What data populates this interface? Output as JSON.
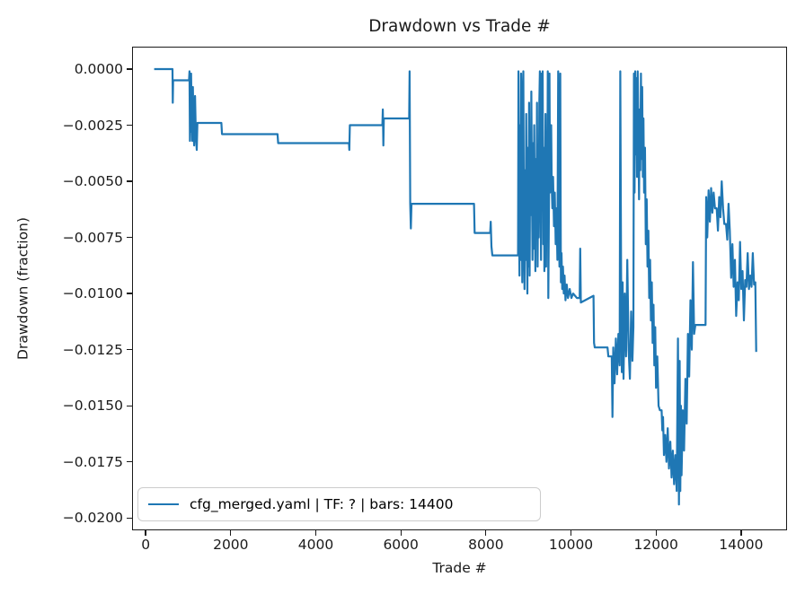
{
  "colors": {
    "line": "#1f77b4",
    "spine": "#1a1a1a",
    "legend_border": "#cccccc",
    "background": "#ffffff"
  },
  "chart_data": {
    "type": "line",
    "title": "Drawdown vs Trade #",
    "xlabel": "Trade #",
    "ylabel": "Drawdown (fraction)",
    "xlim": [
      -320,
      15080
    ],
    "ylim": [
      -0.02055,
      0.001
    ],
    "grid": false,
    "legend_position": "lower left",
    "x_ticks": [
      {
        "v": 0,
        "label": "0"
      },
      {
        "v": 2000,
        "label": "2000"
      },
      {
        "v": 4000,
        "label": "4000"
      },
      {
        "v": 6000,
        "label": "6000"
      },
      {
        "v": 8000,
        "label": "8000"
      },
      {
        "v": 10000,
        "label": "10000"
      },
      {
        "v": 12000,
        "label": "12000"
      },
      {
        "v": 14000,
        "label": "14000"
      }
    ],
    "y_ticks": [
      {
        "v": 0.0,
        "label": "0.0000"
      },
      {
        "v": -0.0025,
        "label": "−0.0025"
      },
      {
        "v": -0.005,
        "label": "−0.0050"
      },
      {
        "v": -0.0075,
        "label": "−0.0075"
      },
      {
        "v": -0.01,
        "label": "−0.0100"
      },
      {
        "v": -0.0125,
        "label": "−0.0125"
      },
      {
        "v": -0.015,
        "label": "−0.0150"
      },
      {
        "v": -0.0175,
        "label": "−0.0175"
      },
      {
        "v": -0.02,
        "label": "−0.0200"
      }
    ],
    "series": [
      {
        "name": "cfg_merged.yaml | TF: ? | bars: 14400",
        "color": "#1f77b4",
        "points": [
          [
            200,
            0
          ],
          [
            630,
            0
          ],
          [
            637,
            -0.0015
          ],
          [
            645,
            -0.0005
          ],
          [
            1020,
            -0.0005
          ],
          [
            1030,
            -0.0001
          ],
          [
            1040,
            -0.0032
          ],
          [
            1048,
            -0.0004
          ],
          [
            1058,
            -0.0028
          ],
          [
            1068,
            -0.0002
          ],
          [
            1080,
            -0.002
          ],
          [
            1095,
            -0.0032
          ],
          [
            1110,
            -0.0008
          ],
          [
            1125,
            -0.0028
          ],
          [
            1140,
            -0.0034
          ],
          [
            1160,
            -0.0012
          ],
          [
            1180,
            -0.003
          ],
          [
            1200,
            -0.0036
          ],
          [
            1215,
            -0.0024
          ],
          [
            1780,
            -0.0024
          ],
          [
            1795,
            -0.0029
          ],
          [
            3100,
            -0.0029
          ],
          [
            3115,
            -0.0033
          ],
          [
            4780,
            -0.0033
          ],
          [
            4788,
            -0.0036
          ],
          [
            4800,
            -0.0025
          ],
          [
            5565,
            -0.0025
          ],
          [
            5575,
            -0.0018
          ],
          [
            5588,
            -0.0034
          ],
          [
            5600,
            -0.0022
          ],
          [
            6195,
            -0.0022
          ],
          [
            6205,
            -0.0001
          ],
          [
            6220,
            -0.006
          ],
          [
            6235,
            -0.0071
          ],
          [
            6250,
            -0.006
          ],
          [
            7720,
            -0.006
          ],
          [
            7735,
            -0.0073
          ],
          [
            8100,
            -0.0073
          ],
          [
            8112,
            -0.0068
          ],
          [
            8130,
            -0.0079
          ],
          [
            8150,
            -0.0083
          ],
          [
            8755,
            -0.0083
          ],
          [
            8765,
            -0.0001
          ],
          [
            8778,
            -0.006
          ],
          [
            8790,
            -0.0092
          ],
          [
            8802,
            -0.0025
          ],
          [
            8815,
            -0.0085
          ],
          [
            8828,
            -0.0002
          ],
          [
            8842,
            -0.0055
          ],
          [
            8855,
            -0.0095
          ],
          [
            8868,
            -0.0012
          ],
          [
            8880,
            -0.0001
          ],
          [
            8895,
            -0.0078
          ],
          [
            8908,
            -0.0098
          ],
          [
            8922,
            -0.0045
          ],
          [
            8935,
            -0.0085
          ],
          [
            8948,
            -0.002
          ],
          [
            8962,
            -0.0075
          ],
          [
            8975,
            -0.01
          ],
          [
            8988,
            -0.0035
          ],
          [
            9002,
            -0.0088
          ],
          [
            9015,
            -0.0015
          ],
          [
            9028,
            -0.0092
          ],
          [
            9042,
            -0.003
          ],
          [
            9055,
            -0.0065
          ],
          [
            9068,
            -0.001
          ],
          [
            9082,
            -0.0055
          ],
          [
            9095,
            -0.0085
          ],
          [
            9108,
            -0.0033
          ],
          [
            9122,
            -0.008
          ],
          [
            9135,
            -0.0025
          ],
          [
            9148,
            -0.006
          ],
          [
            9162,
            -0.009
          ],
          [
            9175,
            -0.004
          ],
          [
            9188,
            -0.0075
          ],
          [
            9202,
            -0.0015
          ],
          [
            9215,
            -0.0088
          ],
          [
            9228,
            -0.0048
          ],
          [
            9242,
            -0.0075
          ],
          [
            9255,
            -0.0015
          ],
          [
            9268,
            -0.0001
          ],
          [
            9282,
            -0.0048
          ],
          [
            9295,
            -0.0085
          ],
          [
            9308,
            -0.0002
          ],
          [
            9322,
            -0.0062
          ],
          [
            9335,
            -0.0001
          ],
          [
            9348,
            -0.0078
          ],
          [
            9362,
            -0.0035
          ],
          [
            9375,
            -0.009
          ],
          [
            9388,
            -0.0055
          ],
          [
            9402,
            -0.002
          ],
          [
            9415,
            -0.0088
          ],
          [
            9428,
            -0.0042
          ],
          [
            9442,
            -0.0072
          ],
          [
            9455,
            -0.0001
          ],
          [
            9468,
            -0.0102
          ],
          [
            9482,
            -0.0062
          ],
          [
            9495,
            -0.0002
          ],
          [
            9508,
            -0.0055
          ],
          [
            9522,
            -0.0048
          ],
          [
            9535,
            -0.0025
          ],
          [
            9548,
            -0.0052
          ],
          [
            9562,
            -0.0062
          ],
          [
            9580,
            -0.0048
          ],
          [
            9600,
            -0.007
          ],
          [
            9620,
            -0.0055
          ],
          [
            9640,
            -0.0078
          ],
          [
            9660,
            -0.0062
          ],
          [
            9680,
            -0.0085
          ],
          [
            9700,
            -0.0001
          ],
          [
            9715,
            -0.0068
          ],
          [
            9730,
            -0.0088
          ],
          [
            9748,
            -0.0002
          ],
          [
            9762,
            -0.0095
          ],
          [
            9778,
            -0.0082
          ],
          [
            9795,
            -0.0098
          ],
          [
            9812,
            -0.0088
          ],
          [
            9830,
            -0.01
          ],
          [
            9850,
            -0.0092
          ],
          [
            9870,
            -0.0103
          ],
          [
            9900,
            -0.0096
          ],
          [
            9930,
            -0.0102
          ],
          [
            9970,
            -0.0098
          ],
          [
            10010,
            -0.0102
          ],
          [
            10050,
            -0.01
          ],
          [
            10140,
            -0.0102
          ],
          [
            10205,
            -0.0102
          ],
          [
            10218,
            -0.008
          ],
          [
            10232,
            -0.0104
          ],
          [
            10530,
            -0.0101
          ],
          [
            10542,
            -0.0122
          ],
          [
            10560,
            -0.0124
          ],
          [
            10860,
            -0.0124
          ],
          [
            10878,
            -0.0128
          ],
          [
            10958,
            -0.0128
          ],
          [
            10975,
            -0.0155
          ],
          [
            10995,
            -0.0124
          ],
          [
            11025,
            -0.014
          ],
          [
            11055,
            -0.012
          ],
          [
            11085,
            -0.0136
          ],
          [
            11115,
            -0.0118
          ],
          [
            11145,
            -0.0132
          ],
          [
            11160,
            -0.0001
          ],
          [
            11178,
            -0.009
          ],
          [
            11195,
            -0.0135
          ],
          [
            11215,
            -0.0095
          ],
          [
            11235,
            -0.0138
          ],
          [
            11265,
            -0.01
          ],
          [
            11295,
            -0.0128
          ],
          [
            11325,
            -0.0085
          ],
          [
            11355,
            -0.0125
          ],
          [
            11385,
            -0.0138
          ],
          [
            11415,
            -0.0108
          ],
          [
            11445,
            -0.013
          ],
          [
            11468,
            -0.0115
          ],
          [
            11480,
            -0.0002
          ],
          [
            11495,
            -0.0055
          ],
          [
            11510,
            -0.0001
          ],
          [
            11525,
            -0.0038
          ],
          [
            11540,
            -0.0004
          ],
          [
            11555,
            -0.0048
          ],
          [
            11570,
            -0.0001
          ],
          [
            11585,
            -0.003
          ],
          [
            11600,
            -0.0058
          ],
          [
            11615,
            -0.0018
          ],
          [
            11630,
            -0.0045
          ],
          [
            11645,
            -0.0002
          ],
          [
            11660,
            -0.004
          ],
          [
            11675,
            -0.0008
          ],
          [
            11690,
            -0.0048
          ],
          [
            11705,
            -0.0022
          ],
          [
            11720,
            -0.0055
          ],
          [
            11740,
            -0.0035
          ],
          [
            11760,
            -0.0078
          ],
          [
            11780,
            -0.0058
          ],
          [
            11800,
            -0.0088
          ],
          [
            11820,
            -0.0072
          ],
          [
            11840,
            -0.0102
          ],
          [
            11860,
            -0.0085
          ],
          [
            11880,
            -0.0112
          ],
          [
            11900,
            -0.0095
          ],
          [
            11920,
            -0.0122
          ],
          [
            11940,
            -0.0105
          ],
          [
            11960,
            -0.0132
          ],
          [
            11980,
            -0.0115
          ],
          [
            12000,
            -0.0142
          ],
          [
            12030,
            -0.0128
          ],
          [
            12060,
            -0.015
          ],
          [
            12090,
            -0.0152
          ],
          [
            12130,
            -0.0152
          ],
          [
            12148,
            -0.0161
          ],
          [
            12165,
            -0.0155
          ],
          [
            12185,
            -0.0172
          ],
          [
            12215,
            -0.0163
          ],
          [
            12245,
            -0.0175
          ],
          [
            12275,
            -0.016
          ],
          [
            12305,
            -0.0178
          ],
          [
            12335,
            -0.0166
          ],
          [
            12365,
            -0.0182
          ],
          [
            12395,
            -0.017
          ],
          [
            12425,
            -0.0185
          ],
          [
            12455,
            -0.0172
          ],
          [
            12485,
            -0.0188
          ],
          [
            12515,
            -0.012
          ],
          [
            12538,
            -0.0194
          ],
          [
            12555,
            -0.013
          ],
          [
            12570,
            -0.0188
          ],
          [
            12585,
            -0.015
          ],
          [
            12600,
            -0.0181
          ],
          [
            12630,
            -0.0152
          ],
          [
            12660,
            -0.017
          ],
          [
            12690,
            -0.0138
          ],
          [
            12720,
            -0.0158
          ],
          [
            12750,
            -0.0118
          ],
          [
            12780,
            -0.0137
          ],
          [
            12810,
            -0.0103
          ],
          [
            12840,
            -0.0125
          ],
          [
            12868,
            -0.0086
          ],
          [
            12895,
            -0.0118
          ],
          [
            12925,
            -0.0114
          ],
          [
            13165,
            -0.0114
          ],
          [
            13178,
            -0.0057
          ],
          [
            13205,
            -0.0075
          ],
          [
            13235,
            -0.0054
          ],
          [
            13265,
            -0.0068
          ],
          [
            13295,
            -0.0053
          ],
          [
            13325,
            -0.0064
          ],
          [
            13355,
            -0.0055
          ],
          [
            13385,
            -0.0062
          ],
          [
            13425,
            -0.0062
          ],
          [
            13455,
            -0.0072
          ],
          [
            13485,
            -0.0057
          ],
          [
            13515,
            -0.0066
          ],
          [
            13545,
            -0.005
          ],
          [
            13575,
            -0.0062
          ],
          [
            13605,
            -0.0069
          ],
          [
            13645,
            -0.0069
          ],
          [
            13675,
            -0.0076
          ],
          [
            13705,
            -0.006
          ],
          [
            13735,
            -0.0072
          ],
          [
            13765,
            -0.0093
          ],
          [
            13795,
            -0.0078
          ],
          [
            13825,
            -0.0097
          ],
          [
            13855,
            -0.0085
          ],
          [
            13885,
            -0.011
          ],
          [
            13915,
            -0.0095
          ],
          [
            13945,
            -0.0103
          ],
          [
            13975,
            -0.0077
          ],
          [
            14005,
            -0.0098
          ],
          [
            14035,
            -0.009
          ],
          [
            14065,
            -0.0112
          ],
          [
            14095,
            -0.0094
          ],
          [
            14125,
            -0.0097
          ],
          [
            14155,
            -0.0082
          ],
          [
            14185,
            -0.0098
          ],
          [
            14215,
            -0.0092
          ],
          [
            14245,
            -0.0097
          ],
          [
            14275,
            -0.0082
          ],
          [
            14305,
            -0.0096
          ],
          [
            14335,
            -0.0095
          ],
          [
            14355,
            -0.0126
          ]
        ]
      }
    ]
  }
}
